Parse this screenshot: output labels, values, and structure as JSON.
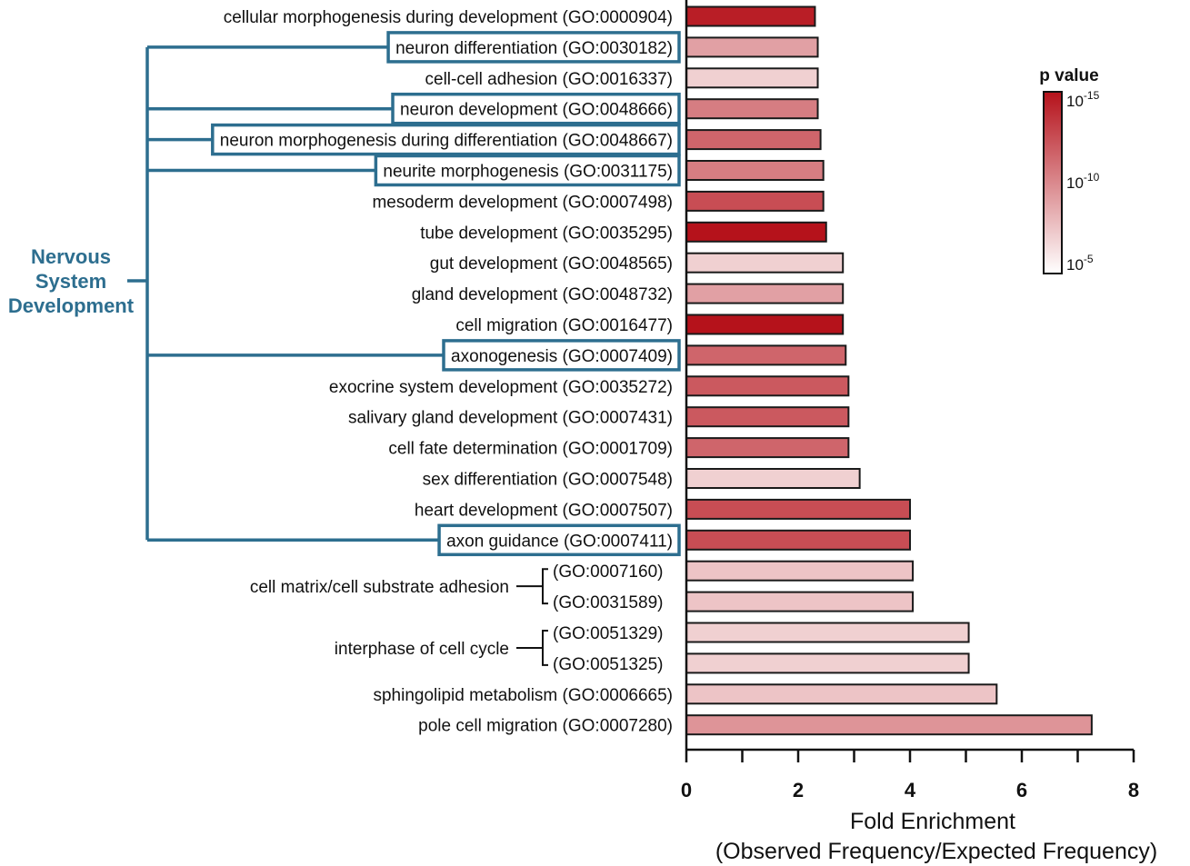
{
  "chart_data": {
    "type": "bar",
    "orientation": "horizontal",
    "categories": [
      "cellular morphogenesis during development (GO:0000904)",
      "neuron differentiation (GO:0030182)",
      "cell-cell adhesion (GO:0016337)",
      "neuron development (GO:0048666)",
      "neuron morphogenesis during differentiation (GO:0048667)",
      "neurite morphogenesis (GO:0031175)",
      "mesoderm development (GO:0007498)",
      "tube development (GO:0035295)",
      "gut development (GO:0048565)",
      "gland development (GO:0048732)",
      "cell migration (GO:0016477)",
      "axonogenesis (GO:0007409)",
      "exocrine system development (GO:0035272)",
      "salivary gland development (GO:0007431)",
      "cell fate determination (GO:0001709)",
      "sex differentiation (GO:0007548)",
      "heart development (GO:0007507)",
      "axon guidance (GO:0007411)",
      "(GO:0007160)",
      "(GO:0031589)",
      "(GO:0051329)",
      "(GO:0051325)",
      "sphingolipid metabolism (GO:0006665)",
      "pole cell migration (GO:0007280)"
    ],
    "values": [
      2.3,
      2.35,
      2.35,
      2.35,
      2.4,
      2.45,
      2.45,
      2.5,
      2.8,
      2.8,
      2.8,
      2.85,
      2.9,
      2.9,
      2.9,
      3.1,
      4.0,
      4.0,
      4.05,
      4.05,
      5.05,
      5.05,
      5.55,
      7.25
    ],
    "p_value_log10": [
      -14.5,
      -9.0,
      -7.0,
      -10.5,
      -11.5,
      -10.5,
      -12.5,
      -15.0,
      -7.0,
      -9.0,
      -15.0,
      -11.5,
      -12.0,
      -12.0,
      -11.5,
      -7.0,
      -12.5,
      -12.5,
      -7.5,
      -7.5,
      -7.0,
      -7.0,
      -7.5,
      -9.5
    ],
    "highlighted": [
      false,
      true,
      false,
      true,
      true,
      true,
      false,
      false,
      false,
      false,
      false,
      true,
      false,
      false,
      false,
      false,
      false,
      true,
      false,
      false,
      false,
      false,
      false,
      false
    ],
    "xlim": [
      0,
      8
    ],
    "xticks": [
      "0",
      "2",
      "4",
      "6",
      "8"
    ],
    "xlabel_line1": "Fold Enrichment",
    "xlabel_line2": "(Observed Frequency/Expected Frequency)",
    "group_label_lines": [
      "Nervous",
      "System",
      "Development"
    ],
    "sub_groups": [
      {
        "label": "cell matrix/cell substrate adhesion",
        "rows": [
          18,
          19
        ]
      },
      {
        "label": "interphase of cell cycle",
        "rows": [
          20,
          21
        ]
      }
    ],
    "legend": {
      "title": "p value",
      "placement": "top-right",
      "ticks": [
        {
          "base": "10",
          "exp": "-15",
          "log10": -15
        },
        {
          "base": "10",
          "exp": "-10",
          "log10": -10
        },
        {
          "base": "10",
          "exp": "-5",
          "log10": -5
        }
      ],
      "color_low_p": "#b5121b",
      "color_high_p": "#ffffff"
    },
    "colors": {
      "group_box": "#2d6e8f",
      "bar_outline": "#1a1a1a"
    }
  }
}
